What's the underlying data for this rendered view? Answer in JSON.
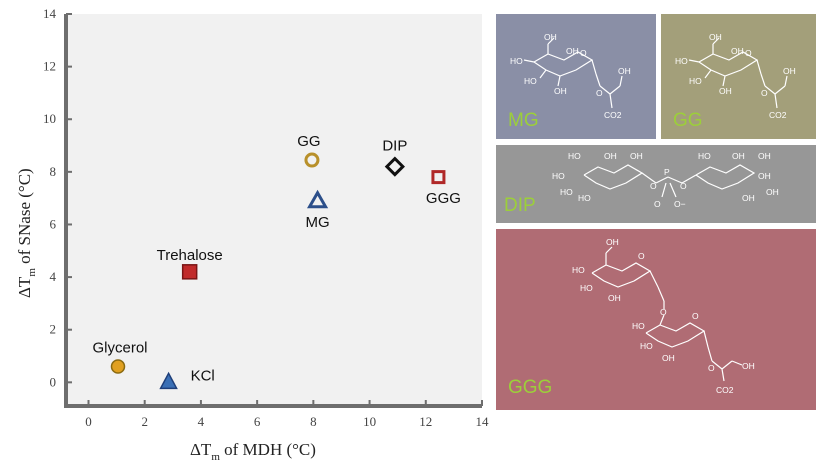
{
  "chart_data": {
    "type": "scatter",
    "xlabel_delta": "ΔT",
    "xlabel_sub": "m",
    "xlabel_rest": " of MDH (°C)",
    "ylabel_delta": "ΔT",
    "ylabel_sub": "m",
    "ylabel_rest": "  of SNase (°C)",
    "xlim": [
      -0.8,
      14
    ],
    "ylim": [
      -0.9,
      14
    ],
    "x_ticks": [
      0,
      2,
      4,
      6,
      8,
      10,
      12,
      14
    ],
    "y_ticks": [
      0,
      2,
      4,
      6,
      8,
      10,
      12,
      14
    ],
    "grid": false,
    "series": [
      {
        "name": "Glycerol",
        "x": 1.05,
        "y": 0.6,
        "marker": "circle-filled",
        "color": "#e0a020",
        "edge": "#8a6a10"
      },
      {
        "name": "KCl",
        "x": 2.85,
        "y": 0.0,
        "marker": "triangle-filled",
        "color": "#3a6fb5",
        "edge": "#1f3f7a"
      },
      {
        "name": "Trehalose",
        "x": 3.6,
        "y": 4.2,
        "marker": "square-filled",
        "color": "#c12a2a",
        "edge": "#7a1515"
      },
      {
        "name": "GG",
        "x": 7.95,
        "y": 8.45,
        "marker": "circle-open",
        "color": "#b8902a",
        "edge": "#b8902a"
      },
      {
        "name": "MG",
        "x": 8.15,
        "y": 6.9,
        "marker": "triangle-open",
        "color": "#2c4f8a",
        "edge": "#2c4f8a"
      },
      {
        "name": "DIP",
        "x": 10.9,
        "y": 8.2,
        "marker": "diamond-open",
        "color": "#111111",
        "edge": "#111111"
      },
      {
        "name": "GGG",
        "x": 12.45,
        "y": 7.8,
        "marker": "square-open",
        "color": "#b02828",
        "edge": "#b02828"
      }
    ]
  },
  "panels": {
    "mg": {
      "label": "MG",
      "color": "#8a8fa6"
    },
    "gg": {
      "label": "GG",
      "color": "#a39f7a"
    },
    "dip": {
      "label": "DIP",
      "color": "#979797"
    },
    "ggg": {
      "label": "GGG",
      "color": "#b06c74"
    }
  },
  "atoms": {
    "oh": "OH",
    "ho": "HO",
    "o": "O",
    "co2": "CO2",
    "minus": "−",
    "p": "P",
    "o_minus": "O−"
  }
}
